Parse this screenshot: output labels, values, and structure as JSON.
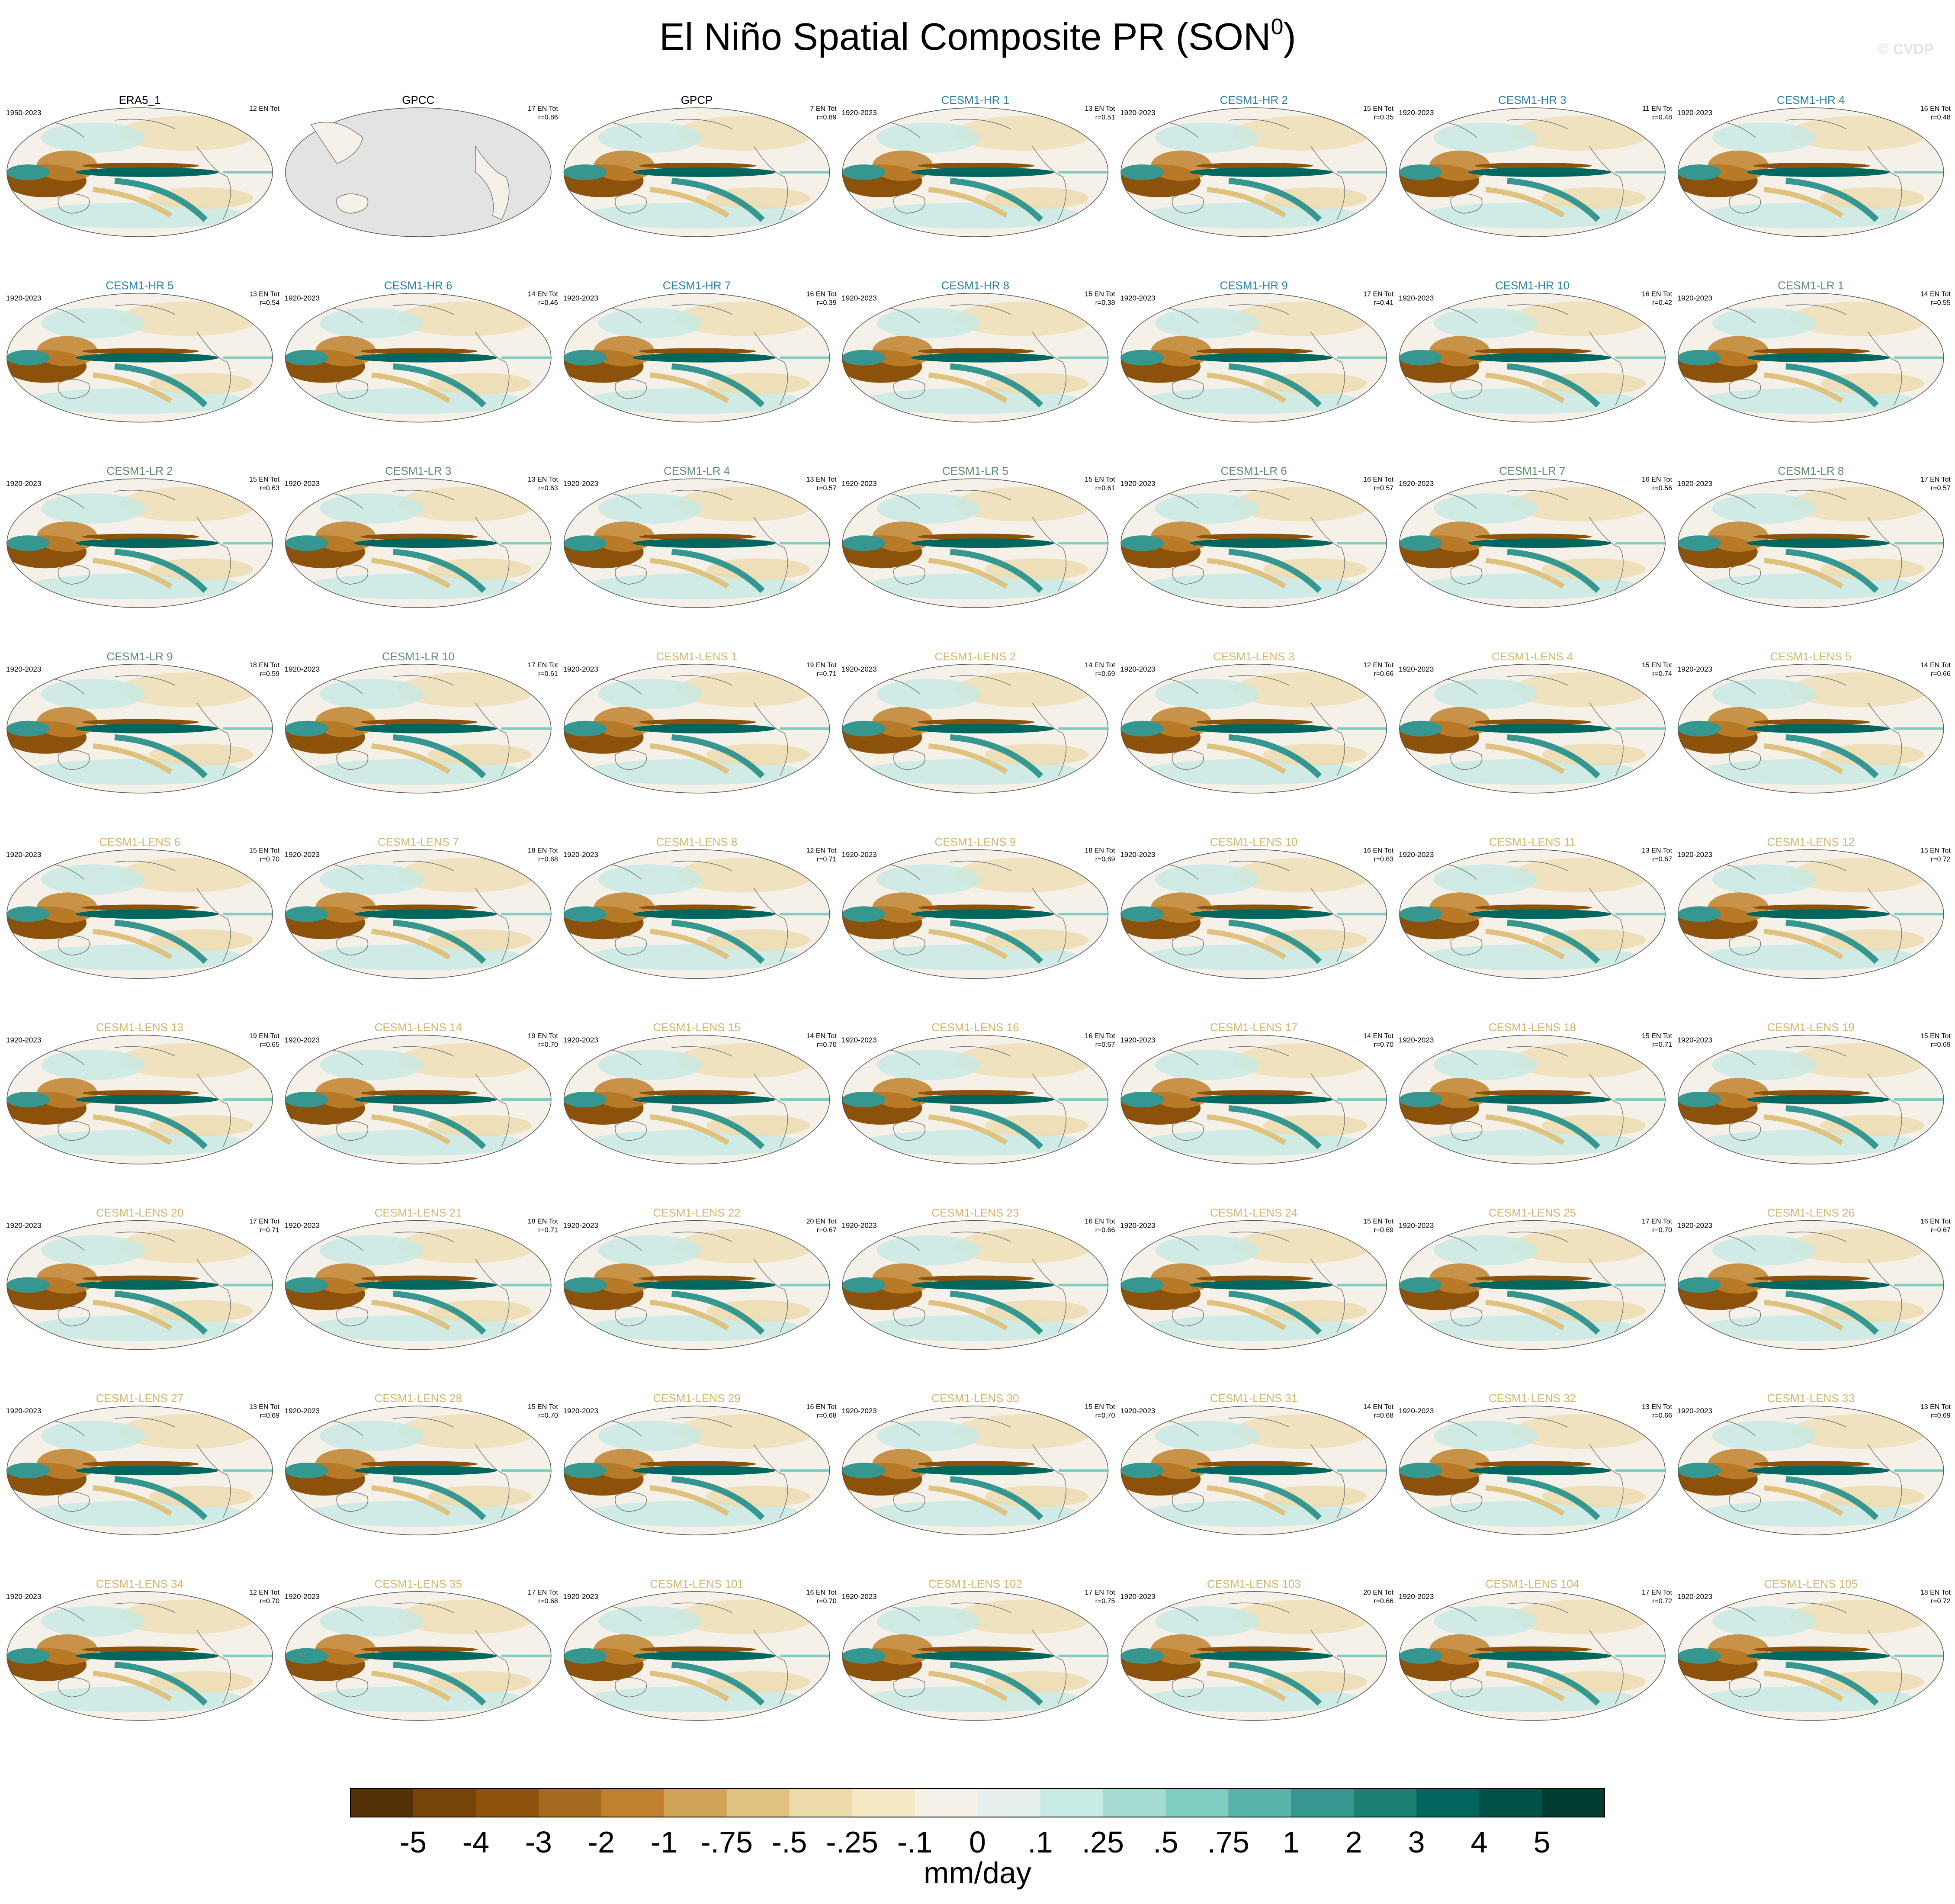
{
  "header": {
    "title": "El Niño Spatial Composite PR (SON",
    "title_superscript": "0",
    "title_close": ")",
    "watermark": "© CVDP"
  },
  "panels": [
    {
      "title": "ERA5_1",
      "color": "#000000",
      "period": "1950-2023",
      "events": "12 EN Tot"
    },
    {
      "title": "GPCC",
      "color": "#000000",
      "events": "17 EN Tot",
      "r": "r=0.86"
    },
    {
      "title": "GPCP",
      "color": "#000000",
      "events": "7 EN Tot",
      "r": "r=0.89"
    },
    {
      "title": "CESM1-HR 1",
      "color": "#2a7fa5",
      "period": "1920-2023",
      "events": "13 EN Tot",
      "r": "r=0.51"
    },
    {
      "title": "CESM1-HR 2",
      "color": "#2a7fa5",
      "period": "1920-2023",
      "events": "15 EN Tot",
      "r": "r=0.35"
    },
    {
      "title": "CESM1-HR 3",
      "color": "#2a7fa5",
      "period": "1920-2023",
      "events": "11 EN Tot",
      "r": "r=0.48"
    },
    {
      "title": "CESM1-HR 4",
      "color": "#2a7fa5",
      "period": "1920-2023",
      "events": "16 EN Tot",
      "r": "r=0.48"
    },
    {
      "title": "CESM1-HR 5",
      "color": "#2a7fa5",
      "period": "1920-2023",
      "events": "13 EN Tot",
      "r": "r=0.54"
    },
    {
      "title": "CESM1-HR 6",
      "color": "#2a7fa5",
      "period": "1920-2023",
      "events": "14 EN Tot",
      "r": "r=0.46"
    },
    {
      "title": "CESM1-HR 7",
      "color": "#2a7fa5",
      "period": "1920-2023",
      "events": "16 EN Tot",
      "r": "r=0.39"
    },
    {
      "title": "CESM1-HR 8",
      "color": "#2a7fa5",
      "period": "1920-2023",
      "events": "15 EN Tot",
      "r": "r=0.38"
    },
    {
      "title": "CESM1-HR 9",
      "color": "#2a7fa5",
      "period": "1920-2023",
      "events": "17 EN Tot",
      "r": "r=0.41"
    },
    {
      "title": "CESM1-HR 10",
      "color": "#2a7fa5",
      "period": "1920-2023",
      "events": "16 EN Tot",
      "r": "r=0.42"
    },
    {
      "title": "CESM1-LR 1",
      "color": "#5e8c6e",
      "period": "1920-2023",
      "events": "14 EN Tot",
      "r": "r=0.55"
    },
    {
      "title": "CESM1-LR 2",
      "color": "#5e8c6e",
      "period": "1920-2023",
      "events": "15 EN Tot",
      "r": "r=0.63"
    },
    {
      "title": "CESM1-LR 3",
      "color": "#5e8c6e",
      "period": "1920-2023",
      "events": "13 EN Tot",
      "r": "r=0.63"
    },
    {
      "title": "CESM1-LR 4",
      "color": "#5e8c6e",
      "period": "1920-2023",
      "events": "13 EN Tot",
      "r": "r=0.57"
    },
    {
      "title": "CESM1-LR 5",
      "color": "#5e8c6e",
      "period": "1920-2023",
      "events": "15 EN Tot",
      "r": "r=0.61"
    },
    {
      "title": "CESM1-LR 6",
      "color": "#5e8c6e",
      "period": "1920-2023",
      "events": "16 EN Tot",
      "r": "r=0.57"
    },
    {
      "title": "CESM1-LR 7",
      "color": "#5e8c6e",
      "period": "1920-2023",
      "events": "16 EN Tot",
      "r": "r=0.56"
    },
    {
      "title": "CESM1-LR 8",
      "color": "#5e8c6e",
      "period": "1920-2023",
      "events": "17 EN Tot",
      "r": "r=0.57"
    },
    {
      "title": "CESM1-LR 9",
      "color": "#5e8c6e",
      "period": "1920-2023",
      "events": "18 EN Tot",
      "r": "r=0.59"
    },
    {
      "title": "CESM1-LR 10",
      "color": "#5e8c6e",
      "period": "1920-2023",
      "events": "17 EN Tot",
      "r": "r=0.61"
    },
    {
      "title": "CESM1-LENS 1",
      "color": "#d6b46a",
      "period": "1920-2023",
      "events": "19 EN Tot",
      "r": "r=0.71"
    },
    {
      "title": "CESM1-LENS 2",
      "color": "#d6b46a",
      "period": "1920-2023",
      "events": "14 EN Tot",
      "r": "r=0.69"
    },
    {
      "title": "CESM1-LENS 3",
      "color": "#d6b46a",
      "period": "1920-2023",
      "events": "12 EN Tot",
      "r": "r=0.66"
    },
    {
      "title": "CESM1-LENS 4",
      "color": "#d6b46a",
      "period": "1920-2023",
      "events": "15 EN Tot",
      "r": "r=0.74"
    },
    {
      "title": "CESM1-LENS 5",
      "color": "#d6b46a",
      "period": "1920-2023",
      "events": "14 EN Tot",
      "r": "r=0.66"
    },
    {
      "title": "CESM1-LENS 6",
      "color": "#d6b46a",
      "period": "1920-2023",
      "events": "15 EN Tot",
      "r": "r=0.70"
    },
    {
      "title": "CESM1-LENS 7",
      "color": "#d6b46a",
      "period": "1920-2023",
      "events": "18 EN Tot",
      "r": "r=0.68"
    },
    {
      "title": "CESM1-LENS 8",
      "color": "#d6b46a",
      "period": "1920-2023",
      "events": "12 EN Tot",
      "r": "r=0.71"
    },
    {
      "title": "CESM1-LENS 9",
      "color": "#d6b46a",
      "period": "1920-2023",
      "events": "18 EN Tot",
      "r": "r=0.69"
    },
    {
      "title": "CESM1-LENS 10",
      "color": "#d6b46a",
      "period": "1920-2023",
      "events": "16 EN Tot",
      "r": "r=0.63"
    },
    {
      "title": "CESM1-LENS 11",
      "color": "#d6b46a",
      "period": "1920-2023",
      "events": "13 EN Tot",
      "r": "r=0.67"
    },
    {
      "title": "CESM1-LENS 12",
      "color": "#d6b46a",
      "period": "1920-2023",
      "events": "15 EN Tot",
      "r": "r=0.72"
    },
    {
      "title": "CESM1-LENS 13",
      "color": "#d6b46a",
      "period": "1920-2023",
      "events": "19 EN Tot",
      "r": "r=0.65"
    },
    {
      "title": "CESM1-LENS 14",
      "color": "#d6b46a",
      "period": "1920-2023",
      "events": "19 EN Tot",
      "r": "r=0.70"
    },
    {
      "title": "CESM1-LENS 15",
      "color": "#d6b46a",
      "period": "1920-2023",
      "events": "14 EN Tot",
      "r": "r=0.70"
    },
    {
      "title": "CESM1-LENS 16",
      "color": "#d6b46a",
      "period": "1920-2023",
      "events": "16 EN Tot",
      "r": "r=0.67"
    },
    {
      "title": "CESM1-LENS 17",
      "color": "#d6b46a",
      "period": "1920-2023",
      "events": "14 EN Tot",
      "r": "r=0.70"
    },
    {
      "title": "CESM1-LENS 18",
      "color": "#d6b46a",
      "period": "1920-2023",
      "events": "15 EN Tot",
      "r": "r=0.71"
    },
    {
      "title": "CESM1-LENS 19",
      "color": "#d6b46a",
      "period": "1920-2023",
      "events": "15 EN Tot",
      "r": "r=0.69"
    },
    {
      "title": "CESM1-LENS 20",
      "color": "#d6b46a",
      "period": "1920-2023",
      "events": "17 EN Tot",
      "r": "r=0.71"
    },
    {
      "title": "CESM1-LENS 21",
      "color": "#d6b46a",
      "period": "1920-2023",
      "events": "18 EN Tot",
      "r": "r=0.71"
    },
    {
      "title": "CESM1-LENS 22",
      "color": "#d6b46a",
      "period": "1920-2023",
      "events": "20 EN Tot",
      "r": "r=0.67"
    },
    {
      "title": "CESM1-LENS 23",
      "color": "#d6b46a",
      "period": "1920-2023",
      "events": "16 EN Tot",
      "r": "r=0.66"
    },
    {
      "title": "CESM1-LENS 24",
      "color": "#d6b46a",
      "period": "1920-2023",
      "events": "15 EN Tot",
      "r": "r=0.69"
    },
    {
      "title": "CESM1-LENS 25",
      "color": "#d6b46a",
      "period": "1920-2023",
      "events": "17 EN Tot",
      "r": "r=0.70"
    },
    {
      "title": "CESM1-LENS 26",
      "color": "#d6b46a",
      "period": "1920-2023",
      "events": "16 EN Tot",
      "r": "r=0.67"
    },
    {
      "title": "CESM1-LENS 27",
      "color": "#d6b46a",
      "period": "1920-2023",
      "events": "13 EN Tot",
      "r": "r=0.69"
    },
    {
      "title": "CESM1-LENS 28",
      "color": "#d6b46a",
      "period": "1920-2023",
      "events": "15 EN Tot",
      "r": "r=0.70"
    },
    {
      "title": "CESM1-LENS 29",
      "color": "#d6b46a",
      "period": "1920-2023",
      "events": "16 EN Tot",
      "r": "r=0.68"
    },
    {
      "title": "CESM1-LENS 30",
      "color": "#d6b46a",
      "period": "1920-2023",
      "events": "15 EN Tot",
      "r": "r=0.70"
    },
    {
      "title": "CESM1-LENS 31",
      "color": "#d6b46a",
      "period": "1920-2023",
      "events": "14 EN Tot",
      "r": "r=0.68"
    },
    {
      "title": "CESM1-LENS 32",
      "color": "#d6b46a",
      "period": "1920-2023",
      "events": "13 EN Tot",
      "r": "r=0.66"
    },
    {
      "title": "CESM1-LENS 33",
      "color": "#d6b46a",
      "period": "1920-2023",
      "events": "13 EN Tot",
      "r": "r=0.69"
    },
    {
      "title": "CESM1-LENS 34",
      "color": "#d6b46a",
      "period": "1920-2023",
      "events": "12 EN Tot",
      "r": "r=0.70"
    },
    {
      "title": "CESM1-LENS 35",
      "color": "#d6b46a",
      "period": "1920-2023",
      "events": "17 EN Tot",
      "r": "r=0.68"
    },
    {
      "title": "CESM1-LENS 101",
      "color": "#d6b46a",
      "period": "1920-2023",
      "events": "16 EN Tot",
      "r": "r=0.70"
    },
    {
      "title": "CESM1-LENS 102",
      "color": "#d6b46a",
      "period": "1920-2023",
      "events": "17 EN Tot",
      "r": "r=0.75"
    },
    {
      "title": "CESM1-LENS 103",
      "color": "#d6b46a",
      "period": "1920-2023",
      "events": "20 EN Tot",
      "r": "r=0.66"
    },
    {
      "title": "CESM1-LENS 104",
      "color": "#d6b46a",
      "period": "1920-2023",
      "events": "17 EN Tot",
      "r": "r=0.72"
    },
    {
      "title": "CESM1-LENS 105",
      "color": "#d6b46a",
      "period": "1920-2023",
      "events": "18 EN Tot",
      "r": "r=0.72"
    }
  ],
  "colorbar": {
    "colors": [
      "#543005",
      "#774408",
      "#8c510a",
      "#a66a1e",
      "#bf812d",
      "#d1a356",
      "#dfc27d",
      "#eedbab",
      "#f6e8c3",
      "#f5f1e9",
      "#e6f1ef",
      "#c7eae5",
      "#a6dcd3",
      "#80cdc1",
      "#5ab4ac",
      "#35978f",
      "#1d8075",
      "#01665e",
      "#005247",
      "#003c30"
    ],
    "labels": [
      "-5",
      "-4",
      "-3",
      "-2",
      "-1",
      "-.75",
      "-.5",
      "-.25",
      "-.1",
      "0",
      ".1",
      ".25",
      ".5",
      ".75",
      "1",
      "2",
      "3",
      "4",
      "5"
    ],
    "unit": "mm/day"
  }
}
